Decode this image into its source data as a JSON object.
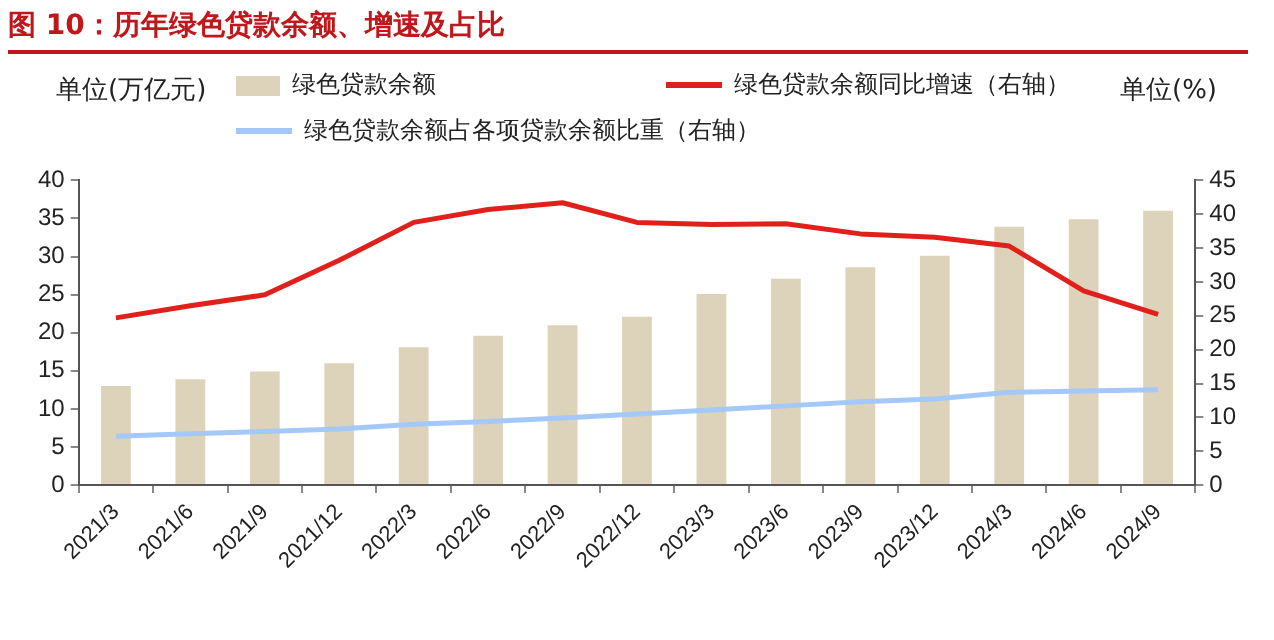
{
  "chart_data": {
    "type": "bar",
    "title": "图 10：历年绿色贷款余额、增速及占比",
    "ylabel": "单位(万亿元)",
    "y2label": "单位(%)",
    "categories": [
      "2021/3",
      "2021/6",
      "2021/9",
      "2021/12",
      "2022/3",
      "2022/6",
      "2022/9",
      "2022/12",
      "2023/3",
      "2023/6",
      "2023/9",
      "2023/12",
      "2024/3",
      "2024/6",
      "2024/9"
    ],
    "series": [
      {
        "name": "绿色贷款余额",
        "color": "#ddd3bb",
        "values": [
          13.0,
          13.9,
          14.9,
          16.0,
          18.1,
          19.6,
          21.0,
          22.1,
          25.1,
          27.1,
          28.6,
          30.1,
          33.9,
          34.9,
          36.0
        ]
      },
      {
        "name": "绿色贷款余额同比增速（右轴）",
        "type": "line",
        "axis": "y2",
        "color": "#e0201b",
        "values": [
          24.7,
          26.5,
          28.1,
          33.2,
          38.8,
          40.7,
          41.7,
          38.8,
          38.5,
          38.6,
          37.1,
          36.6,
          35.3,
          28.7,
          25.2
        ]
      },
      {
        "name": "绿色贷款余额占各项贷款余额比重（右轴）",
        "type": "line",
        "axis": "y2",
        "color": "#a4c8f8",
        "values": [
          7.2,
          7.6,
          7.9,
          8.3,
          9.0,
          9.4,
          9.9,
          10.5,
          11.1,
          11.7,
          12.3,
          12.7,
          13.7,
          13.9,
          14.1
        ]
      }
    ],
    "ylim": [
      0,
      40
    ],
    "yticks": [
      0,
      5,
      10,
      15,
      20,
      25,
      30,
      35,
      40
    ],
    "y2lim": [
      0,
      45
    ],
    "y2ticks": [
      0,
      5,
      10,
      15,
      20,
      25,
      30,
      35,
      40,
      45
    ],
    "grid": false,
    "legend": "top",
    "marker": "none"
  }
}
